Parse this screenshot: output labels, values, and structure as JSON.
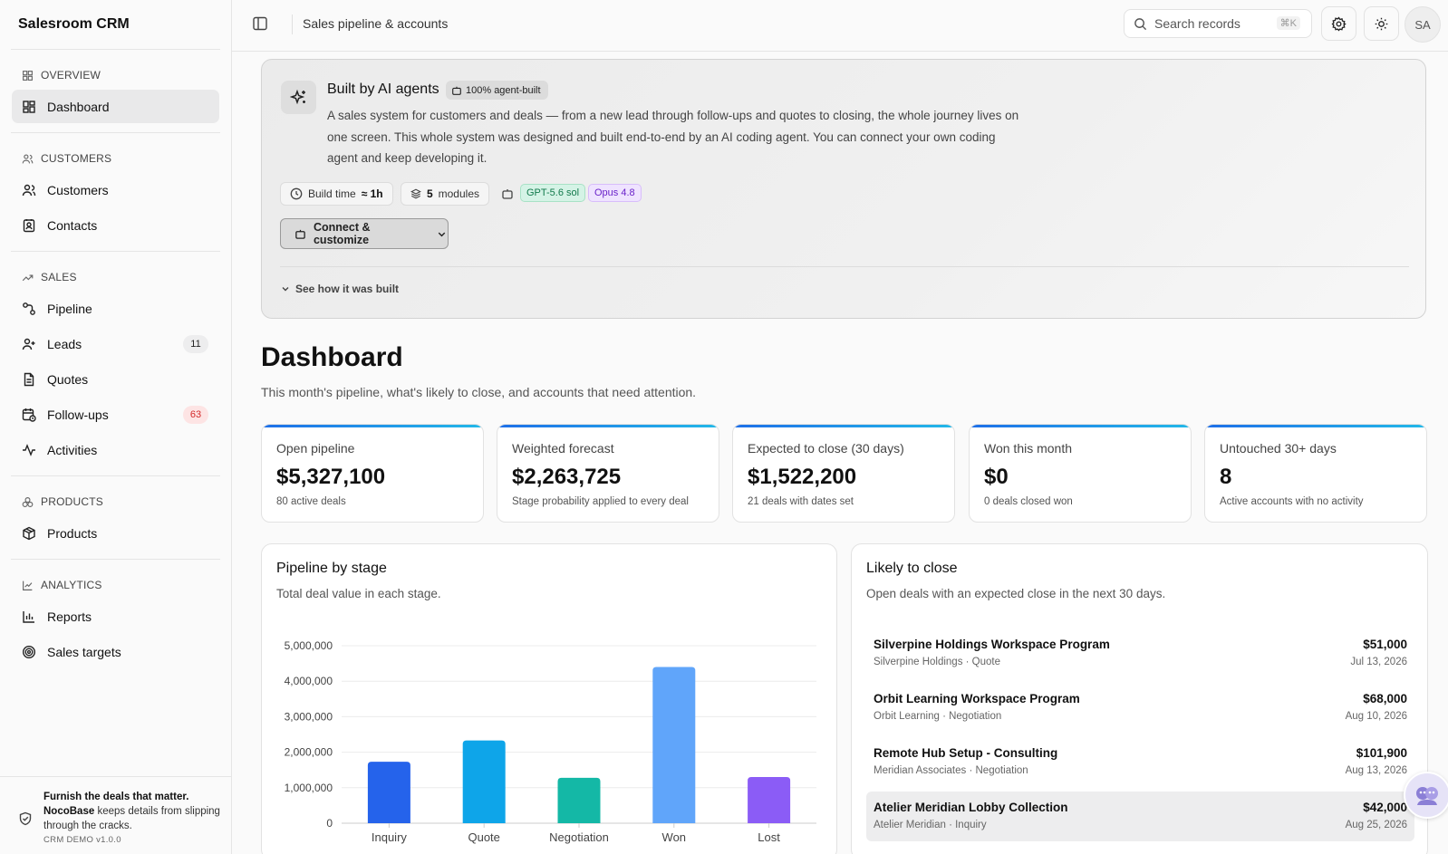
{
  "app": {
    "title": "Salesroom CRM"
  },
  "sidebar": {
    "groups": [
      {
        "label": "OVERVIEW",
        "items": [
          {
            "label": "Dashboard",
            "active": true
          }
        ]
      },
      {
        "label": "CUSTOMERS",
        "items": [
          {
            "label": "Customers"
          },
          {
            "label": "Contacts"
          }
        ]
      },
      {
        "label": "SALES",
        "items": [
          {
            "label": "Pipeline"
          },
          {
            "label": "Leads",
            "badge": "11"
          },
          {
            "label": "Quotes"
          },
          {
            "label": "Follow-ups",
            "badge": "63"
          },
          {
            "label": "Activities"
          }
        ]
      },
      {
        "label": "PRODUCTS",
        "items": [
          {
            "label": "Products"
          }
        ]
      },
      {
        "label": "ANALYTICS",
        "items": [
          {
            "label": "Reports"
          },
          {
            "label": "Sales targets"
          }
        ]
      }
    ],
    "footer": {
      "headline": "Furnish the deals that matter.",
      "brand": "NocoBase",
      "text": " keeps details from slipping through the cracks.",
      "version": "CRM DEMO v1.0.0"
    }
  },
  "topbar": {
    "title": "Sales pipeline & accounts",
    "search_placeholder": "Search records",
    "shortcut": "⌘K",
    "avatar": "SA"
  },
  "banner": {
    "title": "Built by AI agents",
    "badge": "100% agent-built",
    "description": "A sales system for customers and deals — from a new lead through follow-ups and quotes to closing, the whole journey lives on one screen. This whole system was designed and built end-to-end by an AI coding agent. You can connect your own coding agent and keep developing it.",
    "build_time_label": "Build time",
    "build_time_value": "≈ 1h",
    "modules_value": "5",
    "modules_label": "modules",
    "model_1": "GPT-5.6 sol",
    "model_2": "Opus 4.8",
    "connect_label": "Connect & customize",
    "see_how": "See how it was built"
  },
  "dashboard": {
    "title": "Dashboard",
    "subtitle": "This month's pipeline, what's likely to close, and accounts that need attention."
  },
  "kpis": [
    {
      "label": "Open pipeline",
      "value": "$5,327,100",
      "hint": "80 active deals"
    },
    {
      "label": "Weighted forecast",
      "value": "$2,263,725",
      "hint": "Stage probability applied to every deal"
    },
    {
      "label": "Expected to close (30 days)",
      "value": "$1,522,200",
      "hint": "21 deals with dates set"
    },
    {
      "label": "Won this month",
      "value": "$0",
      "hint": "0 deals closed won"
    },
    {
      "label": "Untouched 30+ days",
      "value": "8",
      "hint": "Active accounts with no activity"
    }
  ],
  "pipeline_card": {
    "title": "Pipeline by stage",
    "subtitle": "Total deal value in each stage."
  },
  "likely_card": {
    "title": "Likely to close",
    "subtitle": "Open deals with an expected close in the next 30 days.",
    "deals": [
      {
        "name": "Silverpine Holdings Workspace Program",
        "meta": "Silverpine Holdings · Quote",
        "amount": "$51,000",
        "date": "Jul 13, 2026"
      },
      {
        "name": "Orbit Learning Workspace Program",
        "meta": "Orbit Learning · Negotiation",
        "amount": "$68,000",
        "date": "Aug 10, 2026"
      },
      {
        "name": "Remote Hub Setup - Consulting",
        "meta": "Meridian Associates · Negotiation",
        "amount": "$101,900",
        "date": "Aug 13, 2026"
      },
      {
        "name": "Atelier Meridian Lobby Collection",
        "meta": "Atelier Meridian · Inquiry",
        "amount": "$42,000",
        "date": "Aug 25, 2026"
      }
    ]
  },
  "chart_data": {
    "type": "bar",
    "categories": [
      "Inquiry",
      "Quote",
      "Negotiation",
      "Won",
      "Lost"
    ],
    "values": [
      1730000,
      2330000,
      1280000,
      4400000,
      1300000
    ],
    "colors": [
      "#2563eb",
      "#0ea5e9",
      "#14b8a6",
      "#60a5fa",
      "#8b5cf6"
    ],
    "ylim": [
      0,
      5000000
    ],
    "yticks": [
      "0",
      "1,000,000",
      "2,000,000",
      "3,000,000",
      "4,000,000",
      "5,000,000"
    ],
    "grid": true
  }
}
